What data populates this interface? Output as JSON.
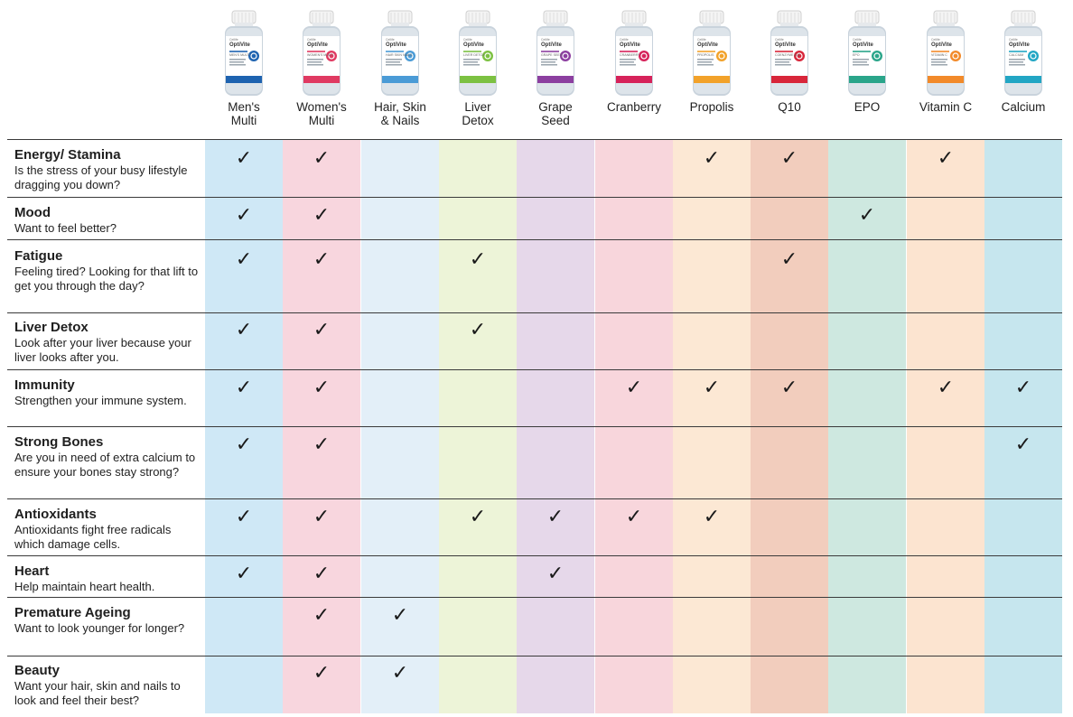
{
  "products": [
    {
      "name": "Men's\nMulti",
      "band_color": "#cfe8f6",
      "accent": "#1e63b0",
      "label": "MEN'S MULTI"
    },
    {
      "name": "Women's\nMulti",
      "band_color": "#f8d6de",
      "accent": "#e03a62",
      "label": "WOMEN'S MULTI"
    },
    {
      "name": "Hair, Skin\n& Nails",
      "band_color": "#e3eff8",
      "accent": "#4a9bd6",
      "label": "HAIR SKIN NAILS"
    },
    {
      "name": "Liver\nDetox",
      "band_color": "#edf4d8",
      "accent": "#7cc142",
      "label": "LIVER DETOX"
    },
    {
      "name": "Grape\nSeed",
      "band_color": "#e6d8ea",
      "accent": "#8c3fa0",
      "label": "GRAPE SEED"
    },
    {
      "name": "Cranberry",
      "band_color": "#f8d6dc",
      "accent": "#d6225a",
      "label": "CRANBERRY"
    },
    {
      "name": "Propolis",
      "band_color": "#fce8d4",
      "accent": "#f2a22a",
      "label": "PROPOLIS"
    },
    {
      "name": "Q10",
      "band_color": "#f2cdbd",
      "accent": "#d8263a",
      "label": "COENZYME Q10"
    },
    {
      "name": "EPO",
      "band_color": "#cee8e0",
      "accent": "#2aa58a",
      "label": "EPO"
    },
    {
      "name": "Vitamin C",
      "band_color": "#fce4d0",
      "accent": "#f28a2a",
      "label": "VITAMIN C"
    },
    {
      "name": "Calcium",
      "band_color": "#c6e6ee",
      "accent": "#22a6c4",
      "label": "CALCIUM"
    }
  ],
  "bottle": {
    "brand": "OptiVite",
    "maker": "Cellife"
  },
  "check_symbol": "✓",
  "rows": [
    {
      "title": "Energy/ Stamina",
      "desc": "Is the stress of your busy lifestyle dragging you down?",
      "checks": [
        true,
        true,
        false,
        false,
        false,
        false,
        true,
        true,
        false,
        true,
        false
      ]
    },
    {
      "title": "Mood",
      "desc": "Want to feel better?",
      "checks": [
        true,
        true,
        false,
        false,
        false,
        false,
        false,
        false,
        true,
        false,
        false
      ]
    },
    {
      "title": "Fatigue",
      "desc": "Feeling tired? Looking for that lift to get you through the day?",
      "checks": [
        true,
        true,
        false,
        true,
        false,
        false,
        false,
        true,
        false,
        false,
        false
      ]
    },
    {
      "title": "Liver Detox",
      "desc": "Look after your liver because your liver looks after you.",
      "checks": [
        true,
        true,
        false,
        true,
        false,
        false,
        false,
        false,
        false,
        false,
        false
      ]
    },
    {
      "title": "Immunity",
      "desc": "Strengthen your immune system.",
      "checks": [
        true,
        true,
        false,
        false,
        false,
        true,
        true,
        true,
        false,
        true,
        true
      ]
    },
    {
      "title": "Strong Bones",
      "desc": "Are you in need of extra calcium to ensure your bones stay strong?",
      "checks": [
        true,
        true,
        false,
        false,
        false,
        false,
        false,
        false,
        false,
        false,
        true
      ]
    },
    {
      "title": "Antioxidants",
      "desc": "Antioxidants fight free radicals which damage cells.",
      "checks": [
        true,
        true,
        false,
        true,
        true,
        true,
        true,
        false,
        false,
        false,
        false
      ]
    },
    {
      "title": "Heart",
      "desc": "Help maintain heart health.",
      "checks": [
        true,
        true,
        false,
        false,
        true,
        false,
        false,
        false,
        false,
        false,
        false
      ]
    },
    {
      "title": "Premature Ageing",
      "desc": "Want to look younger for longer?",
      "checks": [
        false,
        true,
        true,
        false,
        false,
        false,
        false,
        false,
        false,
        false,
        false
      ]
    },
    {
      "title": "Beauty",
      "desc": "Want your hair, skin and nails to look and feel their best?",
      "checks": [
        false,
        true,
        true,
        false,
        false,
        false,
        false,
        false,
        false,
        false,
        false
      ]
    }
  ]
}
